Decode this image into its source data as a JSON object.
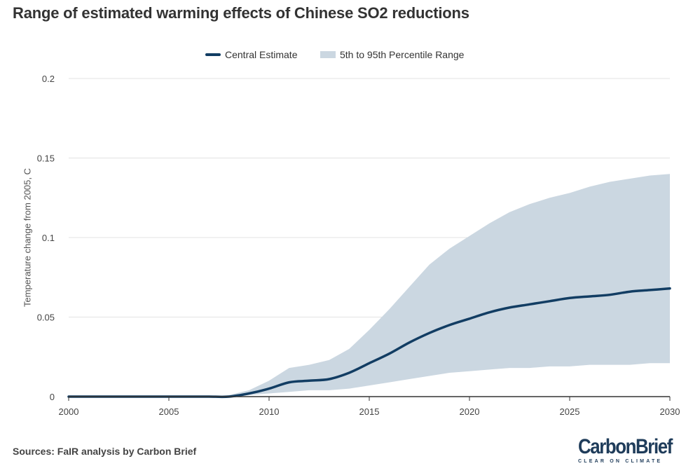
{
  "title": "Range of estimated warming effects of Chinese SO2 reductions",
  "legend": {
    "central": "Central Estimate",
    "range": "5th to 95th Percentile Range"
  },
  "colors": {
    "central": "#123d63",
    "band": "#cbd7e1",
    "grid": "#e3e3e3",
    "axis": "#333333"
  },
  "source": "Sources: FaIR analysis by Carbon Brief",
  "logo": {
    "main": "CarbonBrief",
    "sub": "CLEAR ON CLIMATE"
  },
  "chart_data": {
    "type": "area",
    "title": "Range of estimated warming effects of Chinese SO2 reductions",
    "xlabel": "",
    "ylabel": "Temperature change from 2005, C",
    "xlim": [
      2000,
      2030
    ],
    "ylim": [
      0,
      0.2
    ],
    "x_ticks": [
      2000,
      2005,
      2010,
      2015,
      2020,
      2025,
      2030
    ],
    "y_ticks": [
      0,
      0.05,
      0.1,
      0.15,
      0.2
    ],
    "y_tick_labels": [
      "0",
      "0.05",
      "0.1",
      "0.15",
      "0.2"
    ],
    "grid": true,
    "legend_position": "top-center",
    "x": [
      2000,
      2001,
      2002,
      2003,
      2004,
      2005,
      2006,
      2007,
      2008,
      2009,
      2010,
      2011,
      2012,
      2013,
      2014,
      2015,
      2016,
      2017,
      2018,
      2019,
      2020,
      2021,
      2022,
      2023,
      2024,
      2025,
      2026,
      2027,
      2028,
      2029,
      2030
    ],
    "series": [
      {
        "name": "Central Estimate",
        "values": [
          0,
          0,
          0,
          0,
          0,
          0,
          0,
          0,
          0,
          0.002,
          0.005,
          0.009,
          0.01,
          0.011,
          0.015,
          0.021,
          0.027,
          0.034,
          0.04,
          0.045,
          0.049,
          0.053,
          0.056,
          0.058,
          0.06,
          0.062,
          0.063,
          0.064,
          0.066,
          0.067,
          0.068
        ]
      }
    ],
    "band": {
      "name": "5th to 95th Percentile Range",
      "upper": [
        0,
        0,
        0,
        0,
        0,
        0,
        0,
        0,
        0.001,
        0.004,
        0.01,
        0.018,
        0.02,
        0.023,
        0.03,
        0.042,
        0.055,
        0.069,
        0.083,
        0.093,
        0.101,
        0.109,
        0.116,
        0.121,
        0.125,
        0.128,
        0.132,
        0.135,
        0.137,
        0.139,
        0.14
      ],
      "lower": [
        0,
        0,
        0,
        0,
        0,
        0,
        0,
        0,
        0,
        0.001,
        0.002,
        0.003,
        0.004,
        0.004,
        0.005,
        0.007,
        0.009,
        0.011,
        0.013,
        0.015,
        0.016,
        0.017,
        0.018,
        0.018,
        0.019,
        0.019,
        0.02,
        0.02,
        0.02,
        0.021,
        0.021
      ]
    }
  }
}
